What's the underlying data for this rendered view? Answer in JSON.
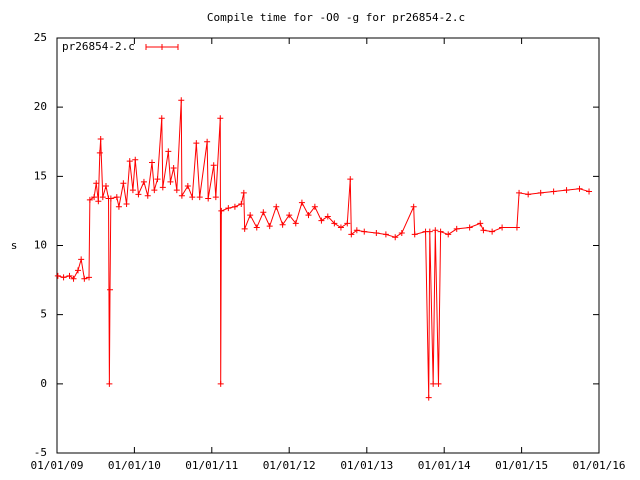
{
  "chart_data": {
    "type": "line",
    "title": "Compile time for -O0 -g for pr26854-2.c",
    "ylabel": "s",
    "xlim": [
      "2009-01-01",
      "2016-01-01"
    ],
    "xticks": [
      {
        "value": "2009-01-01",
        "label": "01/01/09"
      },
      {
        "value": "2010-01-01",
        "label": "01/01/10"
      },
      {
        "value": "2011-01-01",
        "label": "01/01/11"
      },
      {
        "value": "2012-01-01",
        "label": "01/01/12"
      },
      {
        "value": "2013-01-01",
        "label": "01/01/13"
      },
      {
        "value": "2014-01-01",
        "label": "01/01/14"
      },
      {
        "value": "2015-01-01",
        "label": "01/01/15"
      },
      {
        "value": "2016-01-01",
        "label": "01/01/16"
      }
    ],
    "ylim": [
      -5,
      25
    ],
    "yticks": [
      -5,
      0,
      5,
      10,
      15,
      20,
      25
    ],
    "legend": "top-left",
    "x": [
      "2009-01-05",
      "2009-02-01",
      "2009-03-01",
      "2009-03-20",
      "2009-04-10",
      "2009-04-25",
      "2009-05-10",
      "2009-06-01",
      "2009-06-05",
      "2009-06-25",
      "2009-07-05",
      "2009-07-15",
      "2009-07-22",
      "2009-07-26",
      "2009-08-05",
      "2009-08-20",
      "2009-09-01",
      "2009-09-05",
      "2009-09-08",
      "2009-09-12",
      "2009-10-10",
      "2009-10-20",
      "2009-11-10",
      "2009-11-25",
      "2009-12-10",
      "2009-12-25",
      "2010-01-05",
      "2010-01-20",
      "2010-02-15",
      "2010-03-05",
      "2010-03-25",
      "2010-04-05",
      "2010-04-20",
      "2010-05-10",
      "2010-05-15",
      "2010-06-10",
      "2010-06-20",
      "2010-07-05",
      "2010-07-20",
      "2010-08-10",
      "2010-08-13",
      "2010-09-10",
      "2010-10-01",
      "2010-10-20",
      "2010-11-05",
      "2010-12-10",
      "2010-12-15",
      "2011-01-10",
      "2011-01-20",
      "2011-02-10",
      "2011-02-12",
      "2011-02-15",
      "2011-03-20",
      "2011-04-20",
      "2011-05-20",
      "2011-06-01",
      "2011-06-05",
      "2011-07-01",
      "2011-08-01",
      "2011-09-01",
      "2011-10-01",
      "2011-11-01",
      "2011-12-01",
      "2012-01-01",
      "2012-02-01",
      "2012-03-01",
      "2012-04-01",
      "2012-05-01",
      "2012-06-01",
      "2012-07-01",
      "2012-08-01",
      "2012-09-01",
      "2012-10-01",
      "2012-10-15",
      "2012-10-20",
      "2012-11-15",
      "2012-12-20",
      "2013-02-15",
      "2013-04-01",
      "2013-05-15",
      "2013-06-15",
      "2013-08-10",
      "2013-08-15",
      "2013-10-05",
      "2013-10-20",
      "2013-10-25",
      "2013-11-10",
      "2013-11-20",
      "2013-12-05",
      "2013-12-15",
      "2014-01-20",
      "2014-03-01",
      "2014-05-01",
      "2014-06-20",
      "2014-07-05",
      "2014-08-15",
      "2014-10-01",
      "2014-12-10",
      "2014-12-20",
      "2015-02-01",
      "2015-04-01",
      "2015-06-01",
      "2015-08-01",
      "2015-10-01",
      "2015-11-15"
    ],
    "series": [
      {
        "name": "pr26854-2.c",
        "color": "#ff0000",
        "values": [
          7.8,
          7.7,
          7.8,
          7.6,
          8.2,
          9.0,
          7.6,
          7.7,
          13.3,
          13.5,
          14.5,
          13.2,
          16.7,
          17.7,
          13.5,
          14.3,
          13.4,
          0,
          6.8,
          13.4,
          13.5,
          12.8,
          14.5,
          13.0,
          16.1,
          14.0,
          16.2,
          13.7,
          14.6,
          13.6,
          16.0,
          14.0,
          14.8,
          19.2,
          14.2,
          16.8,
          14.6,
          15.6,
          14.0,
          20.5,
          13.6,
          14.3,
          13.5,
          17.4,
          13.5,
          17.5,
          13.4,
          15.8,
          13.5,
          19.2,
          0,
          12.5,
          12.7,
          12.8,
          13.0,
          13.8,
          11.2,
          12.2,
          11.3,
          12.4,
          11.4,
          12.8,
          11.5,
          12.2,
          11.6,
          13.1,
          12.2,
          12.8,
          11.8,
          12.1,
          11.6,
          11.3,
          11.6,
          14.8,
          10.8,
          11.1,
          11.0,
          10.9,
          10.8,
          10.6,
          10.9,
          12.8,
          10.8,
          11.0,
          -1,
          11.0,
          0,
          11.1,
          0,
          11.0,
          10.8,
          11.2,
          11.3,
          11.6,
          11.1,
          11.0,
          11.3,
          11.3,
          13.8,
          13.7,
          13.8,
          13.9,
          14.0,
          14.1,
          13.9
        ]
      }
    ]
  }
}
